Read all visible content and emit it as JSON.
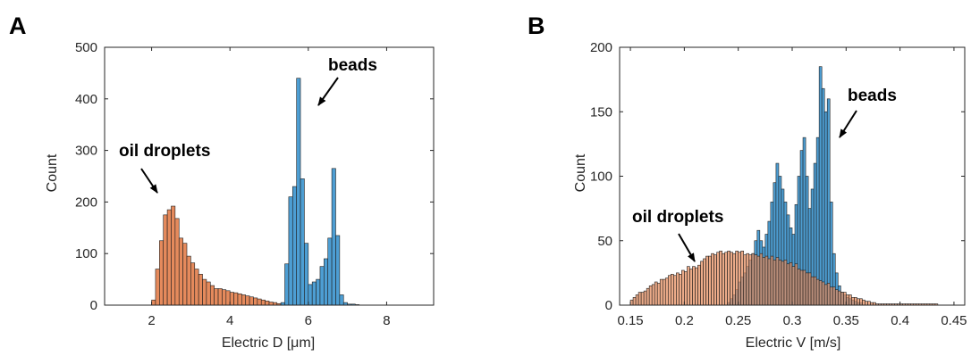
{
  "colors": {
    "beads": "#4d9ed3",
    "oil_droplets": "#e58a5c",
    "bar_edge": "#1f1f1f",
    "axis": "#262626"
  },
  "chart_data": [
    {
      "type": "bar",
      "panel": "A",
      "xlabel": "Electric D [μm]",
      "ylabel": "Count",
      "xlim": [
        0.8,
        9.2
      ],
      "ylim": [
        0,
        500
      ],
      "xticks": [
        2,
        4,
        6,
        8
      ],
      "yticks": [
        0,
        100,
        200,
        300,
        400,
        500
      ],
      "bin_width": 0.1,
      "grid": false,
      "annotations": [
        {
          "text": "beads",
          "target": "beads peak"
        },
        {
          "text": "oil droplets",
          "target": "oil droplet peak"
        }
      ],
      "series": [
        {
          "key": "oil_droplets",
          "x": [
            2.0,
            2.1,
            2.2,
            2.3,
            2.4,
            2.5,
            2.6,
            2.7,
            2.8,
            2.9,
            3.0,
            3.1,
            3.2,
            3.3,
            3.4,
            3.5,
            3.6,
            3.7,
            3.8,
            3.9,
            4.0,
            4.1,
            4.2,
            4.3,
            4.4,
            4.5,
            4.6,
            4.7,
            4.8,
            4.9,
            5.0,
            5.1,
            5.2,
            5.3,
            5.4
          ],
          "values": [
            10,
            70,
            125,
            175,
            185,
            192,
            168,
            130,
            120,
            95,
            82,
            70,
            60,
            50,
            45,
            38,
            32,
            32,
            30,
            28,
            25,
            24,
            22,
            20,
            18,
            16,
            14,
            12,
            10,
            8,
            6,
            5,
            3,
            2,
            1
          ]
        },
        {
          "key": "beads",
          "x": [
            5.3,
            5.4,
            5.5,
            5.6,
            5.7,
            5.8,
            5.9,
            6.0,
            6.1,
            6.2,
            6.3,
            6.4,
            6.5,
            6.6,
            6.7,
            6.8,
            6.9,
            7.0,
            7.1,
            7.2
          ],
          "values": [
            5,
            80,
            210,
            230,
            440,
            245,
            120,
            40,
            45,
            50,
            75,
            90,
            130,
            265,
            135,
            20,
            5,
            2,
            2,
            1
          ]
        }
      ]
    },
    {
      "type": "bar",
      "panel": "B",
      "xlabel": "Electric V [m/s]",
      "ylabel": "Count",
      "xlim": [
        0.14,
        0.46
      ],
      "ylim": [
        0,
        200
      ],
      "xticks": [
        0.15,
        0.2,
        0.25,
        0.3,
        0.35,
        0.4,
        0.45
      ],
      "yticks": [
        0,
        50,
        100,
        150,
        200
      ],
      "bin_width": 0.0025,
      "grid": false,
      "annotations": [
        {
          "text": "beads",
          "target": "beads peak"
        },
        {
          "text": "oil droplets",
          "target": "oil droplet distribution"
        }
      ],
      "series": [
        {
          "key": "oil_droplets",
          "x0": 0.15,
          "values": [
            4,
            6,
            8,
            10,
            10,
            11,
            13,
            15,
            16,
            18,
            17,
            20,
            20,
            21,
            23,
            24,
            23,
            25,
            24,
            27,
            26,
            30,
            28,
            30,
            29,
            31,
            34,
            36,
            38,
            38,
            40,
            39,
            41,
            42,
            40,
            41,
            42,
            41,
            40,
            42,
            41,
            42,
            39,
            40,
            39,
            40,
            39,
            38,
            40,
            37,
            38,
            36,
            38,
            35,
            37,
            35,
            34,
            35,
            32,
            33,
            30,
            32,
            28,
            27,
            27,
            25,
            25,
            22,
            22,
            20,
            19,
            18,
            16,
            17,
            14,
            14,
            12,
            11,
            10,
            10,
            8,
            8,
            6,
            6,
            5,
            5,
            4,
            3,
            3,
            2,
            2,
            1,
            1,
            1,
            1,
            1,
            1,
            1,
            1,
            1,
            1,
            1,
            1,
            1,
            1,
            1,
            1,
            1,
            1,
            1,
            1,
            1,
            1,
            1
          ]
        },
        {
          "key": "beads",
          "x0": 0.24,
          "values": [
            2,
            5,
            8,
            12,
            18,
            22,
            25,
            30,
            35,
            40,
            50,
            58,
            50,
            45,
            55,
            65,
            80,
            95,
            110,
            100,
            90,
            80,
            70,
            60,
            55,
            78,
            100,
            120,
            130,
            100,
            75,
            90,
            110,
            130,
            185,
            168,
            150,
            160,
            80,
            40,
            25,
            15,
            10,
            8,
            6,
            5,
            4,
            3,
            2,
            2
          ]
        }
      ]
    }
  ]
}
